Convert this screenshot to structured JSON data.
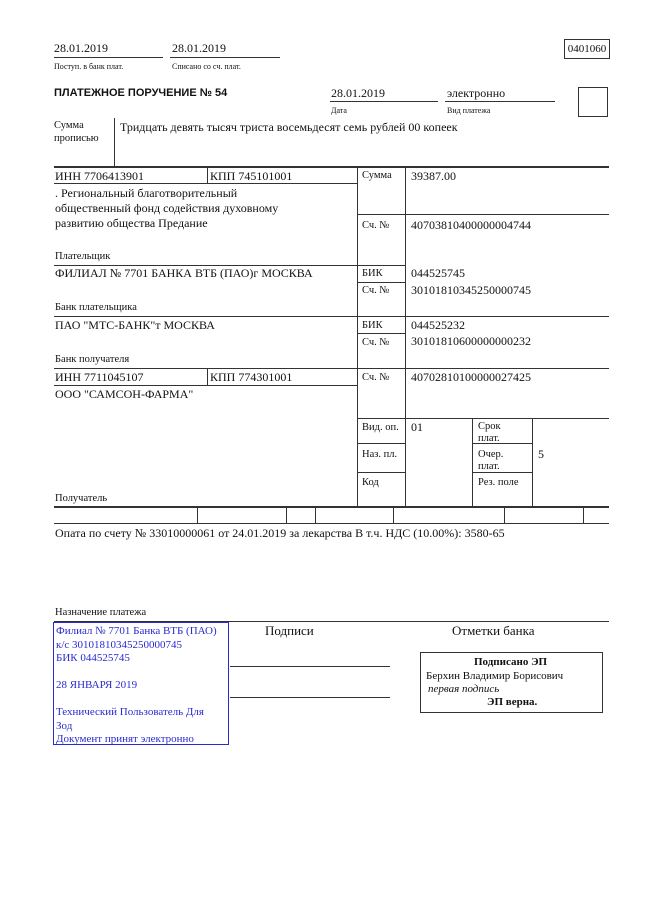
{
  "header": {
    "received_date": "28.01.2019",
    "received_label": "Поступ. в банк плат.",
    "debited_date": "28.01.2019",
    "debited_label": "Списано со сч. плат.",
    "form_code": "0401060",
    "title": "ПЛАТЕЖНОЕ ПОРУЧЕНИЕ № 54",
    "date": "28.01.2019",
    "date_label": "Дата",
    "payment_type": "электронно",
    "payment_type_label": "Вид платежа"
  },
  "amount_words": {
    "label_1": "Сумма",
    "label_2": "прописью",
    "value": "Тридцать девять тысяч триста восемьдесят семь рублей 00 копеек"
  },
  "payer": {
    "inn": "ИНН 7706413901",
    "kpp": "КПП 745101001",
    "name_lines": [
      ". Региональный благотворительный",
      "общественный фонд содействия духовному",
      "развитию общества Предание"
    ],
    "label": "Плательщик",
    "amount_label": "Сумма",
    "amount": "39387.00",
    "account_label": "Сч. №",
    "account": "40703810400000004744"
  },
  "payer_bank": {
    "name": "ФИЛИАЛ № 7701 БАНКА ВТБ (ПАО)г МОСКВА",
    "label": "Банк плательщика",
    "bik_label": "БИК",
    "bik": "044525745",
    "account_label": "Сч. №",
    "account": "30101810345250000745"
  },
  "payee_bank": {
    "name": "ПАО \"МТС-БАНК\"т МОСКВА",
    "label": "Банк получателя",
    "bik_label": "БИК",
    "bik": "044525232",
    "account_label": "Сч. №",
    "account": "30101810600000000232"
  },
  "payee": {
    "inn": "ИНН 7711045107",
    "kpp": "КПП 774301001",
    "name": "ООО \"САМСОН-ФАРМА\"",
    "label": "Получатель",
    "account_label": "Сч. №",
    "account": "40702810100000027425"
  },
  "codes": {
    "op_type_label": "Вид. оп.",
    "op_type": "01",
    "purpose_code_label": "Наз. пл.",
    "code_label": "Код",
    "due_label_1": "Срок",
    "due_label_2": "плат.",
    "priority_label_1": "Очер.",
    "priority_label_2": "плат.",
    "priority": "5",
    "reserve_label": "Рез. поле"
  },
  "purpose": {
    "text": "Опата по счету № 33010000061 от 24.01.2019 за лекарства В т.ч. НДС (10.00%): 3580-65",
    "label": "Назначение платежа"
  },
  "bank_stamp": {
    "lines": [
      "Филиал № 7701 Банка ВТБ (ПАО)",
      "к/с 30101810345250000745",
      "БИК 044525745",
      "",
      "28 ЯНВАРЯ 2019",
      "",
      "Технический Пользователь Для",
      "Зод",
      "Документ принят электронно"
    ],
    "color": "#2a2ad0"
  },
  "signatures": {
    "label": "Подписи"
  },
  "bank_marks": {
    "label": "Отметки банка",
    "signed_title": "Подписано ЭП",
    "signer": "Берхин Владимир Борисович",
    "signature_role": "первая подпись",
    "verified": "ЭП верна."
  }
}
